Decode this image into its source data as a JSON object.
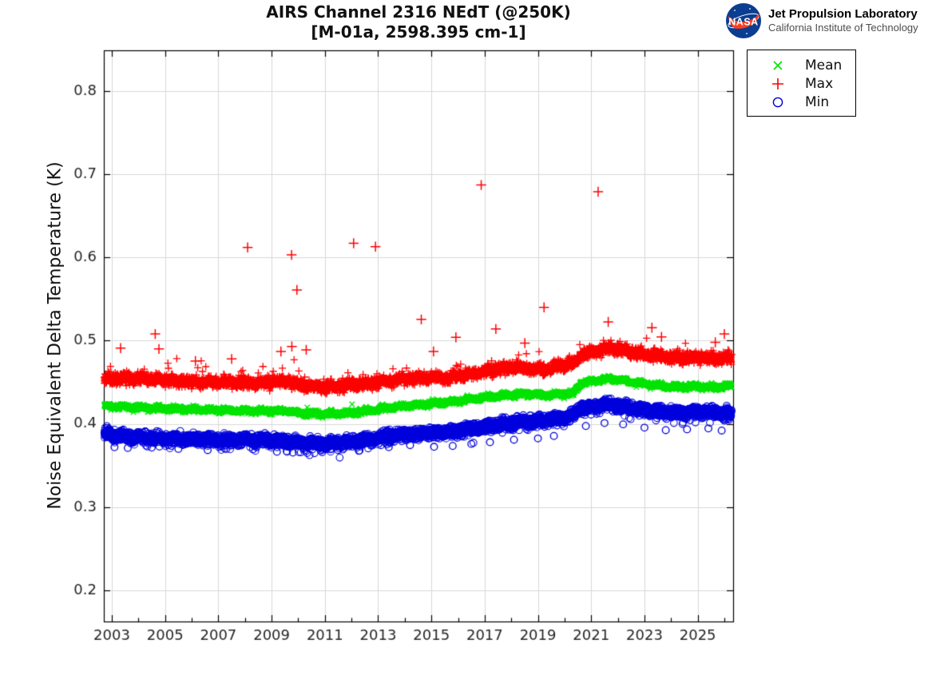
{
  "header": {
    "title_line1": "AIRS Channel 2316 NEdT (@250K)",
    "title_line2": "[M-01a, 2598.395 cm-1]"
  },
  "branding": {
    "org": "Jet Propulsion Laboratory",
    "sub": "California Institute of Technology",
    "logo_text": "NASA",
    "colors": {
      "insignia_blue": "#0b3d91",
      "swoosh_red": "#fc3d21",
      "orbit_white": "#ffffff"
    }
  },
  "legend": {
    "items": [
      {
        "label": "Mean",
        "marker": "x",
        "color": "#00e400"
      },
      {
        "label": "Max",
        "marker": "+",
        "color": "#ff0000"
      },
      {
        "label": "Min",
        "marker": "o",
        "color": "#0000dd"
      }
    ]
  },
  "chart_data": {
    "type": "scatter",
    "title": "AIRS Channel 2316 NEdT (@250K)",
    "subtitle": "[M-01a, 2598.395 cm-1]",
    "xlabel": "",
    "ylabel": "Noise Equivalent Delta Temperature (K)",
    "xlim": [
      2002.7,
      2026.33
    ],
    "ylim": [
      0.1626,
      0.8488
    ],
    "grid": true,
    "legend_position": "outside-top-right",
    "xticks_major": [
      2003,
      2005,
      2007,
      2009,
      2011,
      2013,
      2015,
      2017,
      2019,
      2021,
      2023,
      2025
    ],
    "xtick_labels": [
      "2003",
      "2005",
      "2007",
      "2009",
      "2011",
      "2013",
      "2015",
      "2017",
      "2019",
      "2021",
      "2023",
      "2025"
    ],
    "xticks_minor": [
      2004,
      2006,
      2008,
      2010,
      2012,
      2014,
      2016,
      2018,
      2020,
      2022,
      2024,
      2026
    ],
    "yticks": [
      0.2,
      0.3,
      0.4,
      0.5,
      0.6,
      0.7,
      0.8
    ],
    "ytick_labels": [
      "0.2",
      "0.3",
      "0.4",
      "0.5",
      "0.6",
      "0.7",
      "0.8"
    ],
    "x_data_range": [
      2002.72,
      2026.27
    ],
    "points_per_series": 5200,
    "style": {
      "grid_color": "#d8d8d8",
      "axis_color": "#000000",
      "text_color": "#262626",
      "background": "#ffffff"
    },
    "series": [
      {
        "name": "Mean",
        "marker": "x",
        "color": "#00e400",
        "size": 3.2,
        "line_width": 1.2,
        "spread": 0.005,
        "trend": [
          [
            2002.72,
            0.4215
          ],
          [
            2003.3,
            0.4205
          ],
          [
            2004,
            0.4195
          ],
          [
            2005,
            0.4185
          ],
          [
            2006,
            0.4175
          ],
          [
            2007,
            0.4165
          ],
          [
            2008,
            0.416
          ],
          [
            2009,
            0.4155
          ],
          [
            2009.6,
            0.416
          ],
          [
            2010.2,
            0.4125
          ],
          [
            2011,
            0.412
          ],
          [
            2011.8,
            0.413
          ],
          [
            2012.5,
            0.415
          ],
          [
            2013,
            0.4175
          ],
          [
            2013.8,
            0.421
          ],
          [
            2014.5,
            0.423
          ],
          [
            2015.5,
            0.4255
          ],
          [
            2016,
            0.4275
          ],
          [
            2016.8,
            0.431
          ],
          [
            2017.5,
            0.433
          ],
          [
            2018,
            0.435
          ],
          [
            2018.7,
            0.436
          ],
          [
            2019.3,
            0.434
          ],
          [
            2019.9,
            0.436
          ],
          [
            2020.35,
            0.437
          ],
          [
            2020.6,
            0.449
          ],
          [
            2021.2,
            0.452
          ],
          [
            2021.7,
            0.4545
          ],
          [
            2022.2,
            0.452
          ],
          [
            2022.8,
            0.449
          ],
          [
            2023.5,
            0.446
          ],
          [
            2024.2,
            0.444
          ],
          [
            2025,
            0.445
          ],
          [
            2025.6,
            0.444
          ],
          [
            2026.25,
            0.446
          ]
        ],
        "outliers": [
          [
            2010.34,
            0.4198
          ],
          [
            2012.02,
            0.4236
          ]
        ]
      },
      {
        "name": "Max",
        "marker": "+",
        "color": "#ff0000",
        "size": 4.6,
        "line_width": 1.3,
        "spread": 0.0105,
        "tail": {
          "p": 0.022,
          "base": 0.002,
          "extra": 0.026,
          "dir": 1
        },
        "outlier_size": 6.2,
        "trend": [
          [
            2002.72,
            0.453
          ],
          [
            2003.2,
            0.455
          ],
          [
            2004,
            0.4545
          ],
          [
            2005,
            0.4525
          ],
          [
            2006,
            0.4505
          ],
          [
            2007,
            0.4505
          ],
          [
            2008,
            0.4495
          ],
          [
            2009,
            0.4505
          ],
          [
            2009.6,
            0.4515
          ],
          [
            2010.2,
            0.4455
          ],
          [
            2011,
            0.4445
          ],
          [
            2011.8,
            0.4455
          ],
          [
            2012.5,
            0.4475
          ],
          [
            2013,
            0.4495
          ],
          [
            2013.8,
            0.4535
          ],
          [
            2014.5,
            0.4555
          ],
          [
            2015.5,
            0.4555
          ],
          [
            2016,
            0.4575
          ],
          [
            2016.8,
            0.4615
          ],
          [
            2017.5,
            0.4655
          ],
          [
            2018,
            0.4675
          ],
          [
            2018.7,
            0.4665
          ],
          [
            2019.3,
            0.4655
          ],
          [
            2019.9,
            0.4705
          ],
          [
            2020.35,
            0.4725
          ],
          [
            2020.6,
            0.4825
          ],
          [
            2021.2,
            0.4875
          ],
          [
            2021.7,
            0.4905
          ],
          [
            2022.2,
            0.4885
          ],
          [
            2022.8,
            0.4845
          ],
          [
            2023.5,
            0.4815
          ],
          [
            2024.2,
            0.479
          ],
          [
            2025,
            0.48
          ],
          [
            2025.6,
            0.4785
          ],
          [
            2026.25,
            0.479
          ]
        ],
        "outliers": [
          [
            2003.33,
            0.491
          ],
          [
            2004.63,
            0.508
          ],
          [
            2004.77,
            0.49
          ],
          [
            2006.14,
            0.4755
          ],
          [
            2007.5,
            0.478
          ],
          [
            2008.1,
            0.612
          ],
          [
            2009.35,
            0.487
          ],
          [
            2009.75,
            0.603
          ],
          [
            2009.76,
            0.493
          ],
          [
            2009.95,
            0.561
          ],
          [
            2010.3,
            0.489
          ],
          [
            2012.08,
            0.617
          ],
          [
            2012.9,
            0.613
          ],
          [
            2014.62,
            0.5255
          ],
          [
            2015.08,
            0.487
          ],
          [
            2015.92,
            0.504
          ],
          [
            2016.87,
            0.687
          ],
          [
            2017.42,
            0.514
          ],
          [
            2018.51,
            0.497
          ],
          [
            2019.23,
            0.54
          ],
          [
            2021.26,
            0.679
          ],
          [
            2021.64,
            0.5225
          ],
          [
            2023.28,
            0.5155
          ],
          [
            2023.64,
            0.5045
          ],
          [
            2025.66,
            0.498
          ],
          [
            2026.0,
            0.508
          ]
        ]
      },
      {
        "name": "Min",
        "marker": "o",
        "color": "#0000dd",
        "size": 4.3,
        "line_width": 1.1,
        "spread": 0.01,
        "tail": {
          "p": 0.03,
          "base": 0.003,
          "extra": 0.012,
          "dir": -1
        },
        "trend": [
          [
            2002.72,
            0.3885
          ],
          [
            2003.3,
            0.3855
          ],
          [
            2004,
            0.384
          ],
          [
            2005,
            0.3825
          ],
          [
            2006,
            0.382
          ],
          [
            2007,
            0.3805
          ],
          [
            2008,
            0.381
          ],
          [
            2009,
            0.38
          ],
          [
            2009.6,
            0.3795
          ],
          [
            2010.2,
            0.3765
          ],
          [
            2011,
            0.3765
          ],
          [
            2011.8,
            0.378
          ],
          [
            2012.5,
            0.38
          ],
          [
            2013,
            0.3835
          ],
          [
            2013.8,
            0.3865
          ],
          [
            2014.5,
            0.3885
          ],
          [
            2015.5,
            0.39
          ],
          [
            2016,
            0.392
          ],
          [
            2016.8,
            0.3955
          ],
          [
            2017.5,
            0.3985
          ],
          [
            2018,
            0.4005
          ],
          [
            2018.7,
            0.403
          ],
          [
            2019.3,
            0.404
          ],
          [
            2019.9,
            0.408
          ],
          [
            2020.35,
            0.41
          ],
          [
            2020.6,
            0.419
          ],
          [
            2021.2,
            0.421
          ],
          [
            2021.7,
            0.4235
          ],
          [
            2022.2,
            0.421
          ],
          [
            2022.8,
            0.418
          ],
          [
            2023.5,
            0.415
          ],
          [
            2024.2,
            0.413
          ],
          [
            2025,
            0.4145
          ],
          [
            2025.6,
            0.4135
          ],
          [
            2026.25,
            0.412
          ]
        ],
        "outliers": [
          [
            2003.1,
            0.372
          ],
          [
            2003.6,
            0.371
          ],
          [
            2004.5,
            0.3715
          ],
          [
            2005.5,
            0.37
          ],
          [
            2006.6,
            0.3685
          ],
          [
            2007.3,
            0.37
          ],
          [
            2008.3,
            0.3695
          ],
          [
            2009.2,
            0.3665
          ],
          [
            2009.8,
            0.3655
          ],
          [
            2010.3,
            0.3675
          ],
          [
            2010.9,
            0.366
          ],
          [
            2011.5,
            0.3685
          ],
          [
            2012.3,
            0.368
          ],
          [
            2013.4,
            0.372
          ],
          [
            2014.2,
            0.3745
          ],
          [
            2015.1,
            0.3725
          ],
          [
            2015.8,
            0.3735
          ],
          [
            2016.5,
            0.376
          ],
          [
            2017.2,
            0.378
          ],
          [
            2018.1,
            0.381
          ],
          [
            2019.0,
            0.3825
          ],
          [
            2019.6,
            0.3855
          ],
          [
            2020.8,
            0.3975
          ],
          [
            2021.5,
            0.401
          ],
          [
            2022.2,
            0.3995
          ],
          [
            2023.0,
            0.3955
          ],
          [
            2023.8,
            0.3925
          ],
          [
            2024.6,
            0.3935
          ],
          [
            2025.4,
            0.3945
          ],
          [
            2025.9,
            0.392
          ]
        ]
      }
    ]
  }
}
